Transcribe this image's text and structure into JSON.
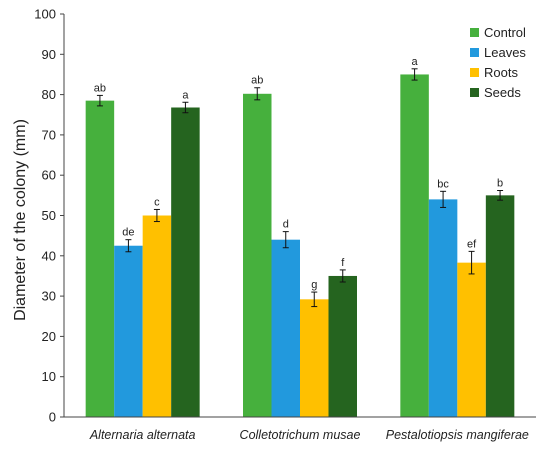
{
  "chart_data": {
    "type": "bar",
    "title": "",
    "xlabel": "",
    "ylabel": "Diameter of the colony (mm)",
    "ylim": [
      0,
      100
    ],
    "yticks": [
      0,
      10,
      20,
      30,
      40,
      50,
      60,
      70,
      80,
      90,
      100
    ],
    "grid": false,
    "legend_position": "top-right",
    "categories": [
      "Alternaria alternata",
      "Colletotrichum musae",
      "Pestalotiopsis mangiferae"
    ],
    "series": [
      {
        "name": "Control",
        "color": "#46b03d",
        "values": [
          78.5,
          80.2,
          85.0
        ],
        "errors": [
          1.3,
          1.5,
          1.4
        ],
        "labels": [
          "ab",
          "ab",
          "a"
        ]
      },
      {
        "name": "Leaves",
        "color": "#2299dd",
        "values": [
          42.5,
          44.0,
          54.0
        ],
        "errors": [
          1.5,
          2.0,
          2.0
        ],
        "labels": [
          "de",
          "d",
          "bc"
        ]
      },
      {
        "name": "Roots",
        "color": "#ffc000",
        "values": [
          50.0,
          29.2,
          38.3
        ],
        "errors": [
          1.5,
          1.8,
          2.8
        ],
        "labels": [
          "c",
          "g",
          "ef"
        ]
      },
      {
        "name": "Seeds",
        "color": "#25641f",
        "values": [
          76.8,
          35.0,
          55.0
        ],
        "errors": [
          1.3,
          1.5,
          1.2
        ],
        "labels": [
          "a",
          "f",
          "b"
        ]
      }
    ]
  }
}
